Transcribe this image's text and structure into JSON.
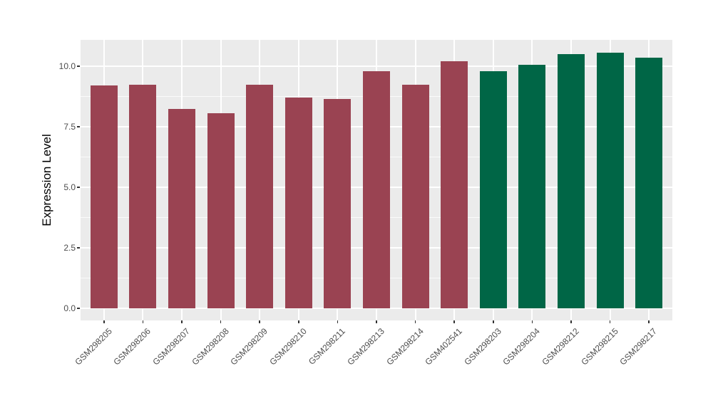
{
  "figure": {
    "background": "#FFFFFF",
    "panel_background": "#EBEBEB",
    "gridline_color": "#FFFFFF",
    "tick_color": "#333333",
    "axis_text_color": "#4D4D4D",
    "axis_title_color": "#000000"
  },
  "chart_data": {
    "type": "bar",
    "title": "",
    "xlabel": "",
    "ylabel": "Expression Level",
    "categories": [
      "GSM298205",
      "GSM298206",
      "GSM298207",
      "GSM298208",
      "GSM298209",
      "GSM298210",
      "GSM298211",
      "GSM298213",
      "GSM298214",
      "GSM402541",
      "GSM298203",
      "GSM298204",
      "GSM298212",
      "GSM298215",
      "GSM298217"
    ],
    "values": [
      9.2,
      9.25,
      8.25,
      8.05,
      9.25,
      8.7,
      8.65,
      9.8,
      9.25,
      10.2,
      9.8,
      10.05,
      10.5,
      10.55,
      10.35
    ],
    "bar_groups": [
      "A",
      "A",
      "A",
      "A",
      "A",
      "A",
      "A",
      "A",
      "A",
      "A",
      "B",
      "B",
      "B",
      "B",
      "B"
    ],
    "group_colors": {
      "A": "#9A4352",
      "B": "#006646"
    },
    "y_ticks": [
      0,
      2.5,
      5,
      7.5,
      10
    ],
    "y_tick_labels": [
      "0.0",
      "2.5",
      "5.0",
      "7.5",
      "10.0"
    ],
    "y_minor_ticks": [
      1.25,
      3.75,
      6.25,
      8.75
    ],
    "ylim": [
      0,
      11.06
    ],
    "grid": true,
    "legend": "none",
    "x_label_rotation": 45
  }
}
